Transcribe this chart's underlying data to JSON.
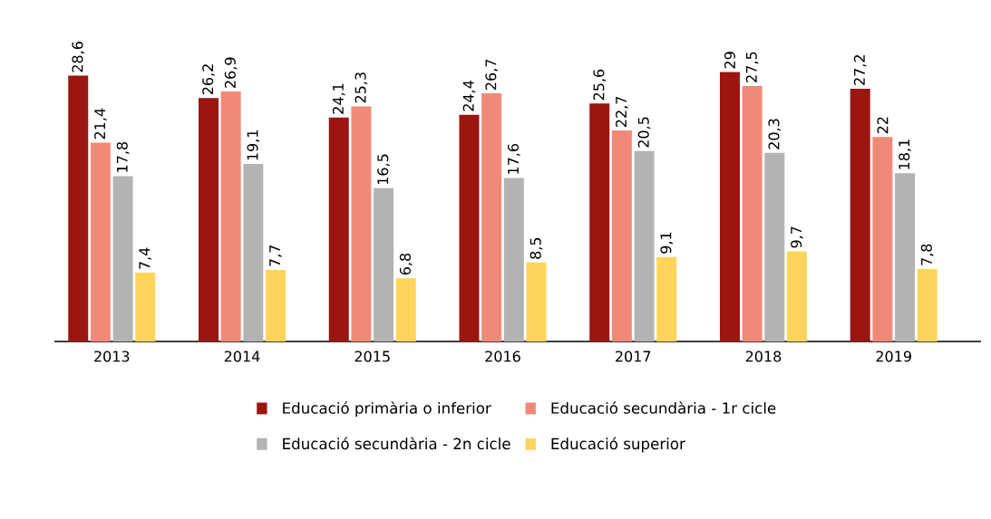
{
  "chart_data": {
    "type": "bar",
    "categories": [
      "2013",
      "2014",
      "2015",
      "2016",
      "2017",
      "2018",
      "2019"
    ],
    "series": [
      {
        "name": "Educació primària o inferior",
        "color": "#9b1611",
        "values": [
          28.6,
          26.2,
          24.1,
          24.4,
          25.6,
          29,
          27.2
        ],
        "value_labels": [
          "28,6",
          "26,2",
          "24,1",
          "24,4",
          "25,6",
          "29",
          "27,2"
        ]
      },
      {
        "name": "Educació secundària - 1r cicle",
        "color": "#f08a78",
        "values": [
          21.4,
          26.9,
          25.3,
          26.7,
          22.7,
          27.5,
          22
        ],
        "value_labels": [
          "21,4",
          "26,9",
          "25,3",
          "26,7",
          "22,7",
          "27,5",
          "22"
        ]
      },
      {
        "name": "Educació secundària - 2n cicle",
        "color": "#b3b3b3",
        "values": [
          17.8,
          19.1,
          16.5,
          17.6,
          20.5,
          20.3,
          18.1
        ],
        "value_labels": [
          "17,8",
          "19,1",
          "16,5",
          "17,6",
          "20,5",
          "20,3",
          "18,1"
        ]
      },
      {
        "name": "Educació superior",
        "color": "#ffd45a",
        "values": [
          7.4,
          7.7,
          6.8,
          8.5,
          9.1,
          9.7,
          7.8
        ],
        "value_labels": [
          "7,4",
          "7,7",
          "6,8",
          "8,5",
          "9,1",
          "9,7",
          "7,8"
        ]
      }
    ],
    "legend": "bottom"
  }
}
